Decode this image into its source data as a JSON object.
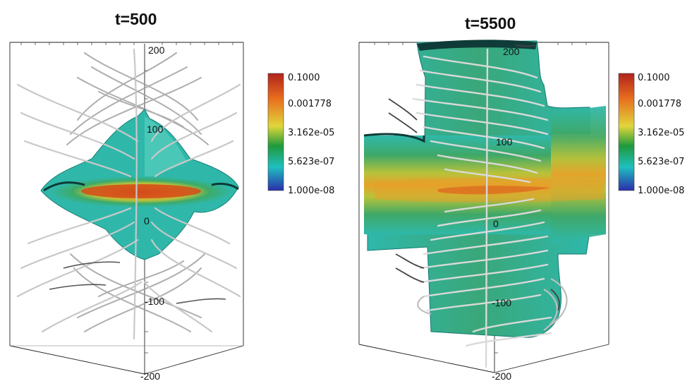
{
  "panels": [
    {
      "title": "t=500",
      "axis_ticks": [
        "200",
        "100",
        "0",
        "-100",
        "-200"
      ],
      "colorbar": {
        "labels": [
          "0.1000",
          "0.001778",
          "3.162e-05",
          "5.623e-07",
          "1.000e-08"
        ],
        "scale": "log",
        "colors": [
          "#b0221b",
          "#e8701f",
          "#e0d63a",
          "#1f9a3c",
          "#1fbfc0",
          "#2a2faa"
        ]
      }
    },
    {
      "title": "t=5500",
      "axis_ticks": [
        "200",
        "100",
        "0",
        "-100",
        "-200"
      ],
      "colorbar": {
        "labels": [
          "0.1000",
          "0.001778",
          "3.162e-05",
          "5.623e-07",
          "1.000e-08"
        ],
        "scale": "log",
        "colors": [
          "#b0221b",
          "#e8701f",
          "#e0d63a",
          "#1f9a3c",
          "#1fbfc0",
          "#2a2faa"
        ]
      }
    }
  ]
}
